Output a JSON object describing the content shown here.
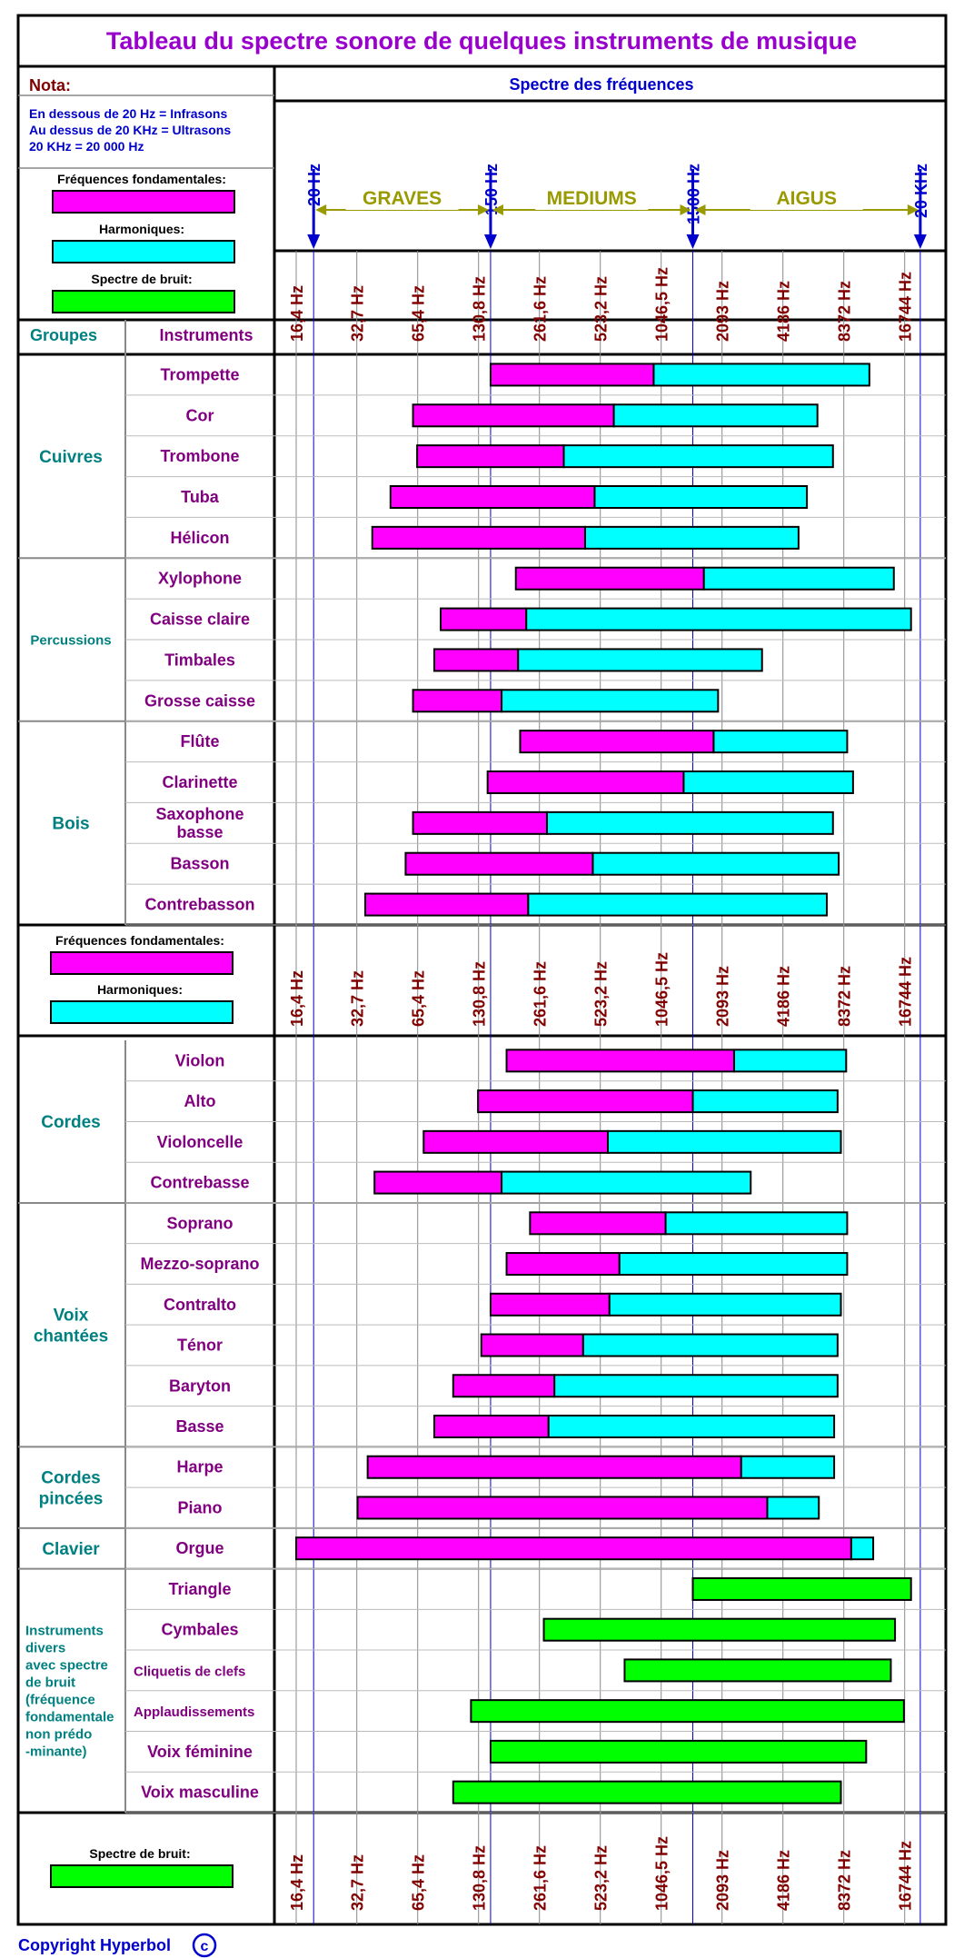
{
  "chart_data": {
    "type": "bar",
    "title": "Tableau du spectre sonore de quelques instruments de musique",
    "frequency_header": "Spectre des fréquences",
    "nota": {
      "title": "Nota:",
      "lines": [
        "En dessous de 20 Hz = Infrasons",
        "Au dessus de 20 KHz = Ultrasons",
        "20 KHz = 20 000 Hz"
      ]
    },
    "legend": {
      "fundamental": "Fréquences fondamentales:",
      "harmonics": "Harmoniques:",
      "noise": "Spectre de bruit:"
    },
    "column_headers": {
      "groups": "Groupes",
      "instruments": "Instruments"
    },
    "markers": [
      {
        "label": "20 Hz",
        "freq": 20
      },
      {
        "label": "150 Hz",
        "freq": 150
      },
      {
        "label": "1500 Hz",
        "freq": 1500
      },
      {
        "label": "20 KHz",
        "freq": 20000
      }
    ],
    "ranges": [
      {
        "label": "GRAVES",
        "from": 20,
        "to": 150
      },
      {
        "label": "MEDIUMS",
        "from": 150,
        "to": 1500
      },
      {
        "label": "AIGUS",
        "from": 1500,
        "to": 20000
      }
    ],
    "ticks": [
      {
        "label": "16,4 Hz",
        "freq": 16.4
      },
      {
        "label": "32,7 Hz",
        "freq": 32.7
      },
      {
        "label": "65,4 Hz",
        "freq": 65.4
      },
      {
        "label": "130,8 Hz",
        "freq": 130.8
      },
      {
        "label": "261,6 Hz",
        "freq": 261.6
      },
      {
        "label": "523,2 Hz",
        "freq": 523.2
      },
      {
        "label": "1046,5 Hz",
        "freq": 1046.5
      },
      {
        "label": "2093 Hz",
        "freq": 2093
      },
      {
        "label": "4186 Hz",
        "freq": 4186
      },
      {
        "label": "8372 Hz",
        "freq": 8372
      },
      {
        "label": "16744 Hz",
        "freq": 16744
      }
    ],
    "xscale": "log2",
    "colors": {
      "fundamental": "#ff00ff",
      "harmonics": "#00ffff",
      "noise": "#00ff00",
      "title": "#9900cc",
      "instrument": "#800080",
      "group": "#008080",
      "axis_label": "#800000",
      "marker": "#0000cc",
      "range_label": "#999900"
    },
    "groups": [
      {
        "name": "Cuivres",
        "instruments": [
          {
            "name": "Trompette",
            "low": 150,
            "split": 960,
            "high": 11200
          },
          {
            "name": "Cor",
            "low": 62,
            "split": 610,
            "high": 6200
          },
          {
            "name": "Trombone",
            "low": 65,
            "split": 345,
            "high": 7400
          },
          {
            "name": "Tuba",
            "low": 48,
            "split": 490,
            "high": 5500
          },
          {
            "name": "Hélicon",
            "low": 39,
            "split": 440,
            "high": 5000
          }
        ]
      },
      {
        "name": "Percussions",
        "instruments": [
          {
            "name": "Xylophone",
            "low": 200,
            "split": 1700,
            "high": 14800
          },
          {
            "name": "Caisse claire",
            "low": 85,
            "split": 225,
            "high": 18000
          },
          {
            "name": "Timbales",
            "low": 79,
            "split": 205,
            "high": 3300
          },
          {
            "name": "Grosse caisse",
            "low": 62,
            "split": 170,
            "high": 2000
          }
        ]
      },
      {
        "name": "Bois",
        "instruments": [
          {
            "name": "Flûte",
            "low": 210,
            "split": 1900,
            "high": 8700
          },
          {
            "name": "Clarinette",
            "low": 145,
            "split": 1350,
            "high": 9300
          },
          {
            "name": "Saxophone basse",
            "low": 62,
            "split": 285,
            "high": 7400
          },
          {
            "name": "Basson",
            "low": 57,
            "split": 480,
            "high": 7900
          },
          {
            "name": "Contrebasson",
            "low": 36,
            "split": 230,
            "high": 6900
          }
        ]
      },
      {
        "name": "Cordes",
        "instruments": [
          {
            "name": "Violon",
            "low": 180,
            "split": 2400,
            "high": 8600
          },
          {
            "name": "Alto",
            "low": 130,
            "split": 1500,
            "high": 7800
          },
          {
            "name": "Violoncelle",
            "low": 70,
            "split": 570,
            "high": 8100
          },
          {
            "name": "Contrebasse",
            "low": 40,
            "split": 170,
            "high": 2900
          }
        ]
      },
      {
        "name": "Voix chantées",
        "instruments": [
          {
            "name": "Soprano",
            "low": 235,
            "split": 1100,
            "high": 8700
          },
          {
            "name": "Mezzo-soprano",
            "low": 180,
            "split": 650,
            "high": 8700
          },
          {
            "name": "Contralto",
            "low": 150,
            "split": 580,
            "high": 8100
          },
          {
            "name": "Ténor",
            "low": 135,
            "split": 430,
            "high": 7800
          },
          {
            "name": "Baryton",
            "low": 98,
            "split": 310,
            "high": 7800
          },
          {
            "name": "Basse",
            "low": 79,
            "split": 290,
            "high": 7500
          }
        ]
      },
      {
        "name": "Cordes pincées",
        "instruments": [
          {
            "name": "Harpe",
            "low": 37,
            "split": 2600,
            "high": 7500
          },
          {
            "name": "Piano",
            "low": 33,
            "split": 3500,
            "high": 6300
          }
        ]
      },
      {
        "name": "Clavier",
        "instruments": [
          {
            "name": "Orgue",
            "low": 16.4,
            "split": 9100,
            "high": 11700
          }
        ]
      },
      {
        "name": "Instruments divers avec spectre de bruit (fréquence fondamentale non prédo -minante)",
        "instruments": [
          {
            "name": "Triangle",
            "noise": [
              1500,
              18000
            ]
          },
          {
            "name": "Cymbales",
            "noise": [
              275,
              15000
            ]
          },
          {
            "name": "Cliquetis de clefs",
            "noise": [
              690,
              14300
            ]
          },
          {
            "name": "Applaudissements",
            "noise": [
              120,
              16600
            ]
          },
          {
            "name": "Voix féminine",
            "noise": [
              150,
              10800
            ]
          },
          {
            "name": "Voix masculine",
            "noise": [
              98,
              8100
            ]
          }
        ]
      }
    ],
    "copyright": "Copyright Hyperbol"
  }
}
